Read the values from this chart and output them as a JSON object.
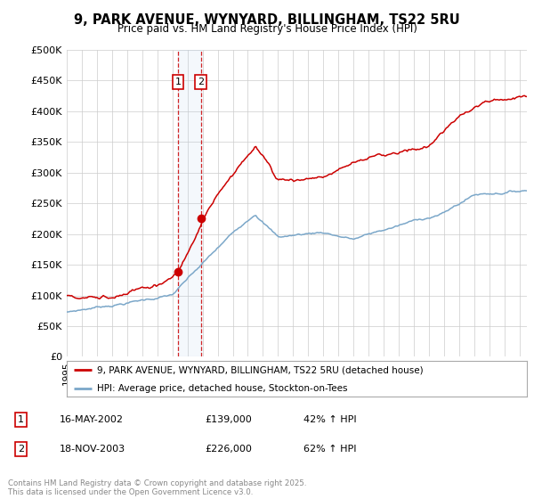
{
  "title_line1": "9, PARK AVENUE, WYNYARD, BILLINGHAM, TS22 5RU",
  "title_line2": "Price paid vs. HM Land Registry's House Price Index (HPI)",
  "ylabel_ticks": [
    "£0",
    "£50K",
    "£100K",
    "£150K",
    "£200K",
    "£250K",
    "£300K",
    "£350K",
    "£400K",
    "£450K",
    "£500K"
  ],
  "ytick_values": [
    0,
    50000,
    100000,
    150000,
    200000,
    250000,
    300000,
    350000,
    400000,
    450000,
    500000
  ],
  "xlim_start": 1995.0,
  "xlim_end": 2025.5,
  "ylim_min": 0,
  "ylim_max": 500000,
  "legend_line1": "9, PARK AVENUE, WYNYARD, BILLINGHAM, TS22 5RU (detached house)",
  "legend_line2": "HPI: Average price, detached house, Stockton-on-Tees",
  "transaction1_date": "16-MAY-2002",
  "transaction1_price": 139000,
  "transaction1_hpi": "42% ↑ HPI",
  "transaction1_x": 2002.37,
  "transaction2_date": "18-NOV-2003",
  "transaction2_price": 226000,
  "transaction2_hpi": "62% ↑ HPI",
  "transaction2_x": 2003.88,
  "line_color_property": "#cc0000",
  "line_color_hpi": "#7ba7c9",
  "footer_text": "Contains HM Land Registry data © Crown copyright and database right 2025.\nThis data is licensed under the Open Government Licence v3.0.",
  "background_color": "#ffffff",
  "grid_color": "#cccccc"
}
